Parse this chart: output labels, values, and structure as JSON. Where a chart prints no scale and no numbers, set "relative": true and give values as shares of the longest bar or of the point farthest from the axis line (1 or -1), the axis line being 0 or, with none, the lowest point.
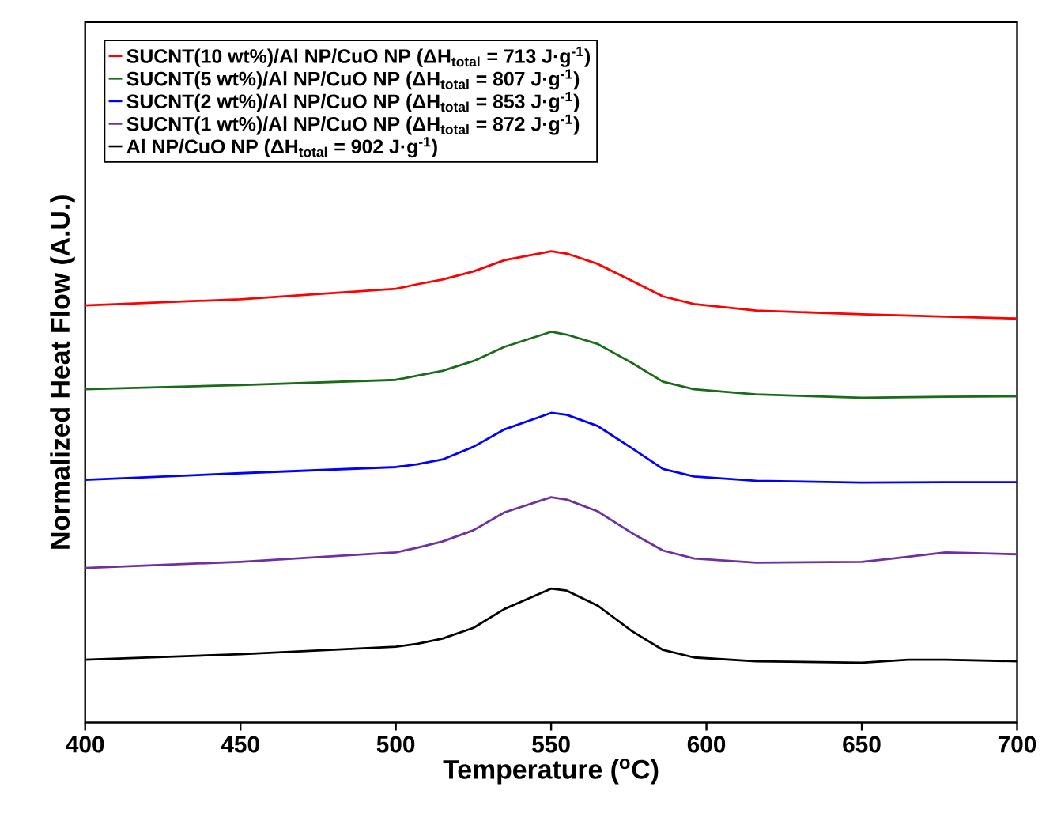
{
  "chart_data": {
    "type": "line",
    "relative": true,
    "xlabel": "Temperature ($^{o}$C)",
    "ylabel": "Normalized Heat Flow (A.U.)",
    "xlim": [
      400,
      700
    ],
    "xticks": [
      400,
      450,
      500,
      550,
      600,
      650,
      700
    ],
    "legend": "top left",
    "grid": false,
    "series": [
      {
        "name": "SUCNT(10 wt%)/Al NP/CuO NP (ΔH$_{total}$ = 713 J·g$^{-1}$)",
        "color": "#ff0000",
        "x": [
          400,
          450,
          500,
          507,
          515,
          525,
          535,
          550,
          555,
          565,
          576,
          586,
          596,
          616,
          650,
          677,
          700
        ],
        "values": [
          0.885,
          0.898,
          0.92,
          0.93,
          0.94,
          0.957,
          0.981,
          1.0,
          0.995,
          0.973,
          0.937,
          0.904,
          0.888,
          0.874,
          0.866,
          0.861,
          0.857
        ]
      },
      {
        "name": "SUCNT(5 wt%)/Al NP/CuO NP (ΔH$_{total}$ = 807 J·g$^{-1}$)",
        "color": "#1a6b1a",
        "x": [
          400,
          450,
          500,
          507,
          515,
          525,
          535,
          550,
          555,
          565,
          576,
          586,
          596,
          616,
          650,
          677,
          700
        ],
        "values": [
          0.707,
          0.716,
          0.727,
          0.736,
          0.746,
          0.767,
          0.797,
          0.829,
          0.823,
          0.803,
          0.763,
          0.723,
          0.707,
          0.696,
          0.689,
          0.691,
          0.692
        ]
      },
      {
        "name": "SUCNT(2 wt%)/Al NP/CuO NP (ΔH$_{total}$ = 853 J·g$^{-1}$)",
        "color": "#0000ff",
        "x": [
          400,
          450,
          500,
          507,
          515,
          525,
          535,
          550,
          555,
          565,
          576,
          586,
          596,
          616,
          650,
          677,
          700
        ],
        "values": [
          0.515,
          0.529,
          0.542,
          0.548,
          0.558,
          0.585,
          0.622,
          0.657,
          0.653,
          0.629,
          0.582,
          0.538,
          0.522,
          0.513,
          0.509,
          0.51,
          0.51
        ]
      },
      {
        "name": "SUCNT(1 wt%)/Al NP/CuO NP (ΔH$_{total}$ = 872 J·g$^{-1}$)",
        "color": "#7030a0",
        "x": [
          400,
          450,
          500,
          507,
          515,
          525,
          535,
          550,
          555,
          565,
          576,
          586,
          596,
          616,
          650,
          660,
          677,
          700
        ],
        "values": [
          0.328,
          0.341,
          0.361,
          0.371,
          0.384,
          0.408,
          0.446,
          0.478,
          0.473,
          0.448,
          0.402,
          0.365,
          0.348,
          0.339,
          0.341,
          0.348,
          0.361,
          0.357
        ]
      },
      {
        "name": "Al NP/CuO NP (ΔH$_{total}$ = 902 J·g$^{-1}$)",
        "color": "#000000",
        "x": [
          400,
          450,
          500,
          507,
          515,
          525,
          535,
          550,
          555,
          565,
          576,
          586,
          596,
          616,
          650,
          665,
          677,
          700
        ],
        "values": [
          0.133,
          0.145,
          0.161,
          0.167,
          0.178,
          0.201,
          0.241,
          0.284,
          0.28,
          0.248,
          0.194,
          0.154,
          0.138,
          0.13,
          0.127,
          0.133,
          0.133,
          0.13
        ]
      }
    ]
  }
}
